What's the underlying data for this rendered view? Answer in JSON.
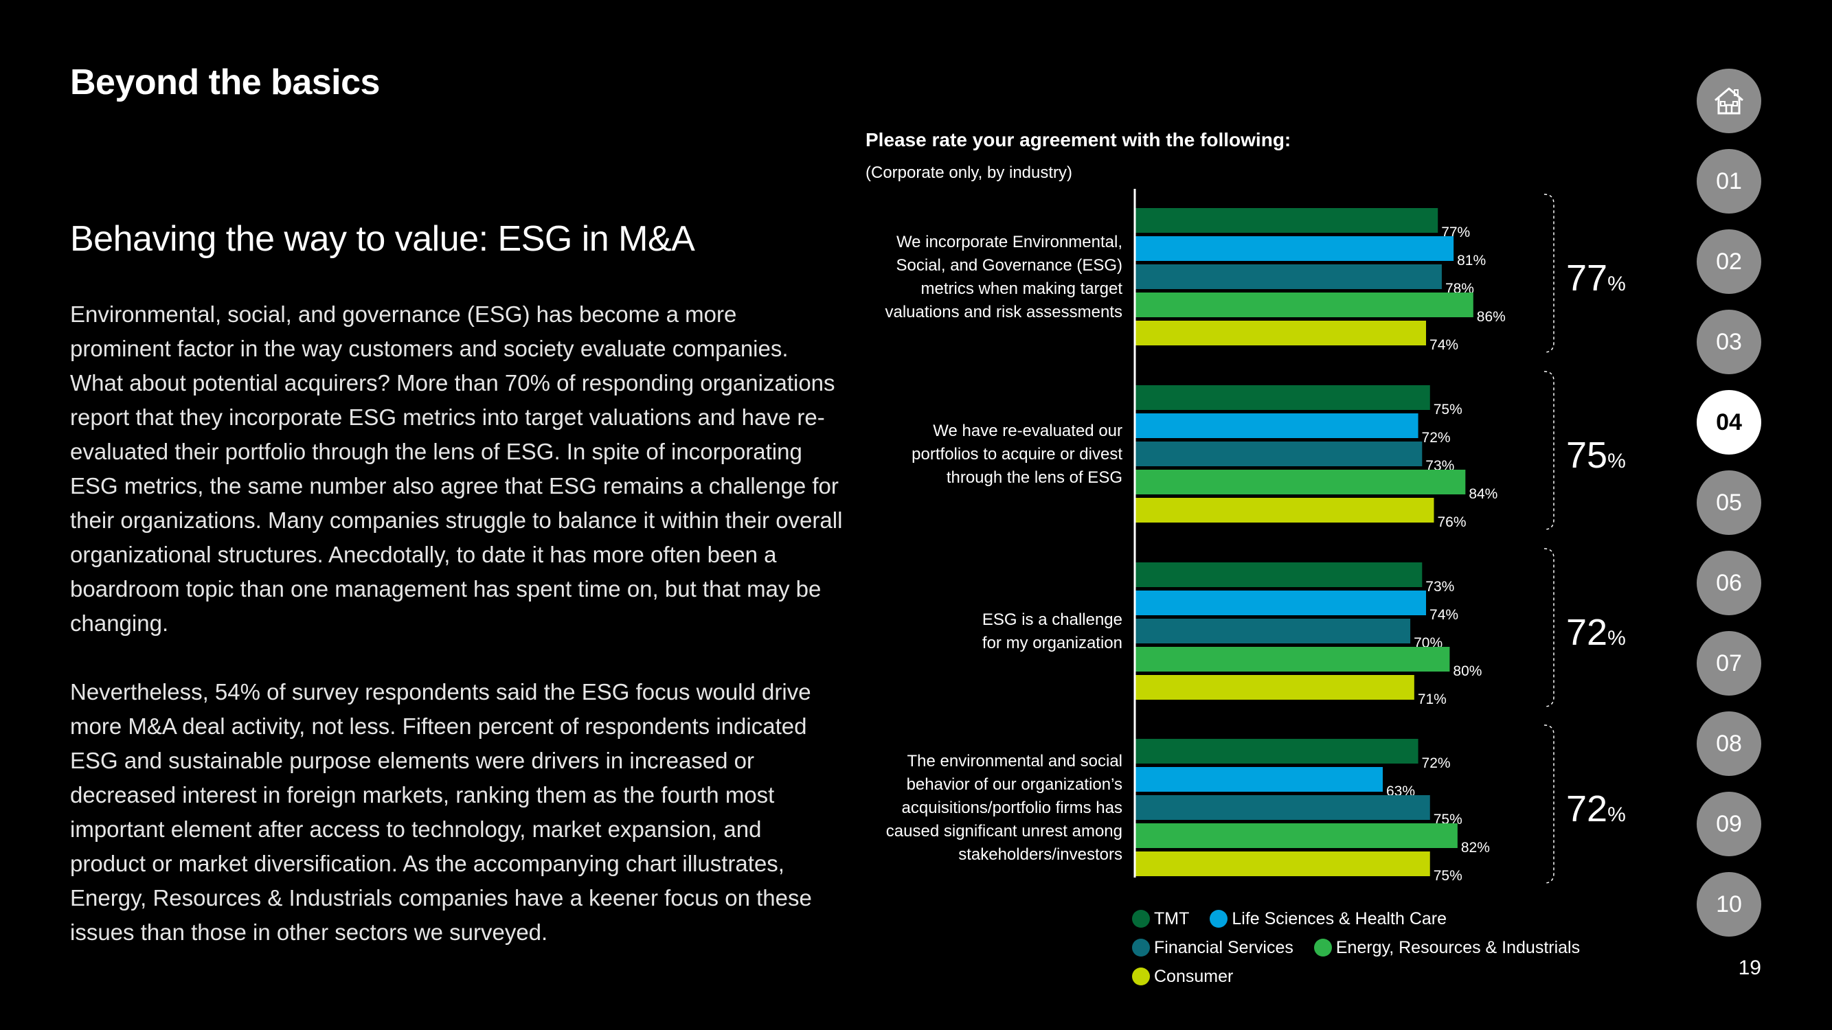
{
  "page": {
    "title": "Beyond the basics",
    "section_heading": "Behaving the way to value: ESG in M&A",
    "paragraphs": [
      "Environmental, social, and governance (ESG) has become a more prominent factor in the way customers and society evaluate companies. What about potential acquirers?  More than 70% of responding organizations report that they incorporate ESG metrics into target valuations and have re-evaluated their portfolio through the lens of ESG. In spite of incorporating ESG metrics, the same number also agree that ESG remains a challenge for their organizations. Many companies struggle to balance it within their overall organizational structures. Anecdotally, to date it has more often been a boardroom topic than one management has spent time on, but that may be changing.",
      "Nevertheless, 54% of survey respondents said the ESG focus would drive more M&A deal activity, not less. Fifteen percent of respondents indicated ESG and sustainable purpose elements were drivers in increased or decreased interest in foreign markets, ranking them as the fourth most important element after access to technology, market expansion, and product or market diversification. As the accompanying chart illustrates, Energy, Resources & Industrials companies have a keener focus on these issues than those in other sectors we surveyed."
    ],
    "page_number": "19"
  },
  "nav": {
    "home_icon": "home-icon",
    "items": [
      "01",
      "02",
      "03",
      "04",
      "05",
      "06",
      "07",
      "08",
      "09",
      "10"
    ],
    "active": "04"
  },
  "chart_data": {
    "type": "bar",
    "orientation": "horizontal",
    "title": "Please rate your agreement with the following:",
    "subtitle": "(Corporate only, by industry)",
    "categories": [
      [
        "We incorporate Environmental,",
        "Social, and Governance (ESG)",
        "metrics when making target",
        "valuations and risk assessments"
      ],
      [
        "We have re-evaluated our",
        "portfolios to acquire or divest",
        "through the lens of ESG"
      ],
      [
        "ESG is a challenge",
        "for my organization"
      ],
      [
        "The environmental and social",
        "behavior of our organization’s",
        "acquisitions/portfolio firms has",
        "caused significant unrest among",
        "stakeholders/investors"
      ]
    ],
    "series": [
      {
        "name": "TMT",
        "color": "#046a38",
        "values": [
          77,
          75,
          73,
          72
        ]
      },
      {
        "name": "Life Sciences & Health Care",
        "color": "#00a3e0",
        "values": [
          81,
          72,
          74,
          63
        ]
      },
      {
        "name": "Financial Services",
        "color": "#0d6c7a",
        "values": [
          78,
          73,
          70,
          75
        ]
      },
      {
        "name": "Energy, Resources & Industrials",
        "color": "#2fb34a",
        "values": [
          86,
          84,
          80,
          82
        ]
      },
      {
        "name": "Consumer",
        "color": "#c4d600",
        "values": [
          74,
          76,
          71,
          75
        ]
      }
    ],
    "totals": [
      {
        "value": "77",
        "unit": "%"
      },
      {
        "value": "75",
        "unit": "%"
      },
      {
        "value": "72",
        "unit": "%"
      },
      {
        "value": "72",
        "unit": "%"
      }
    ],
    "value_suffix": "%",
    "xlim": [
      0,
      100
    ]
  }
}
